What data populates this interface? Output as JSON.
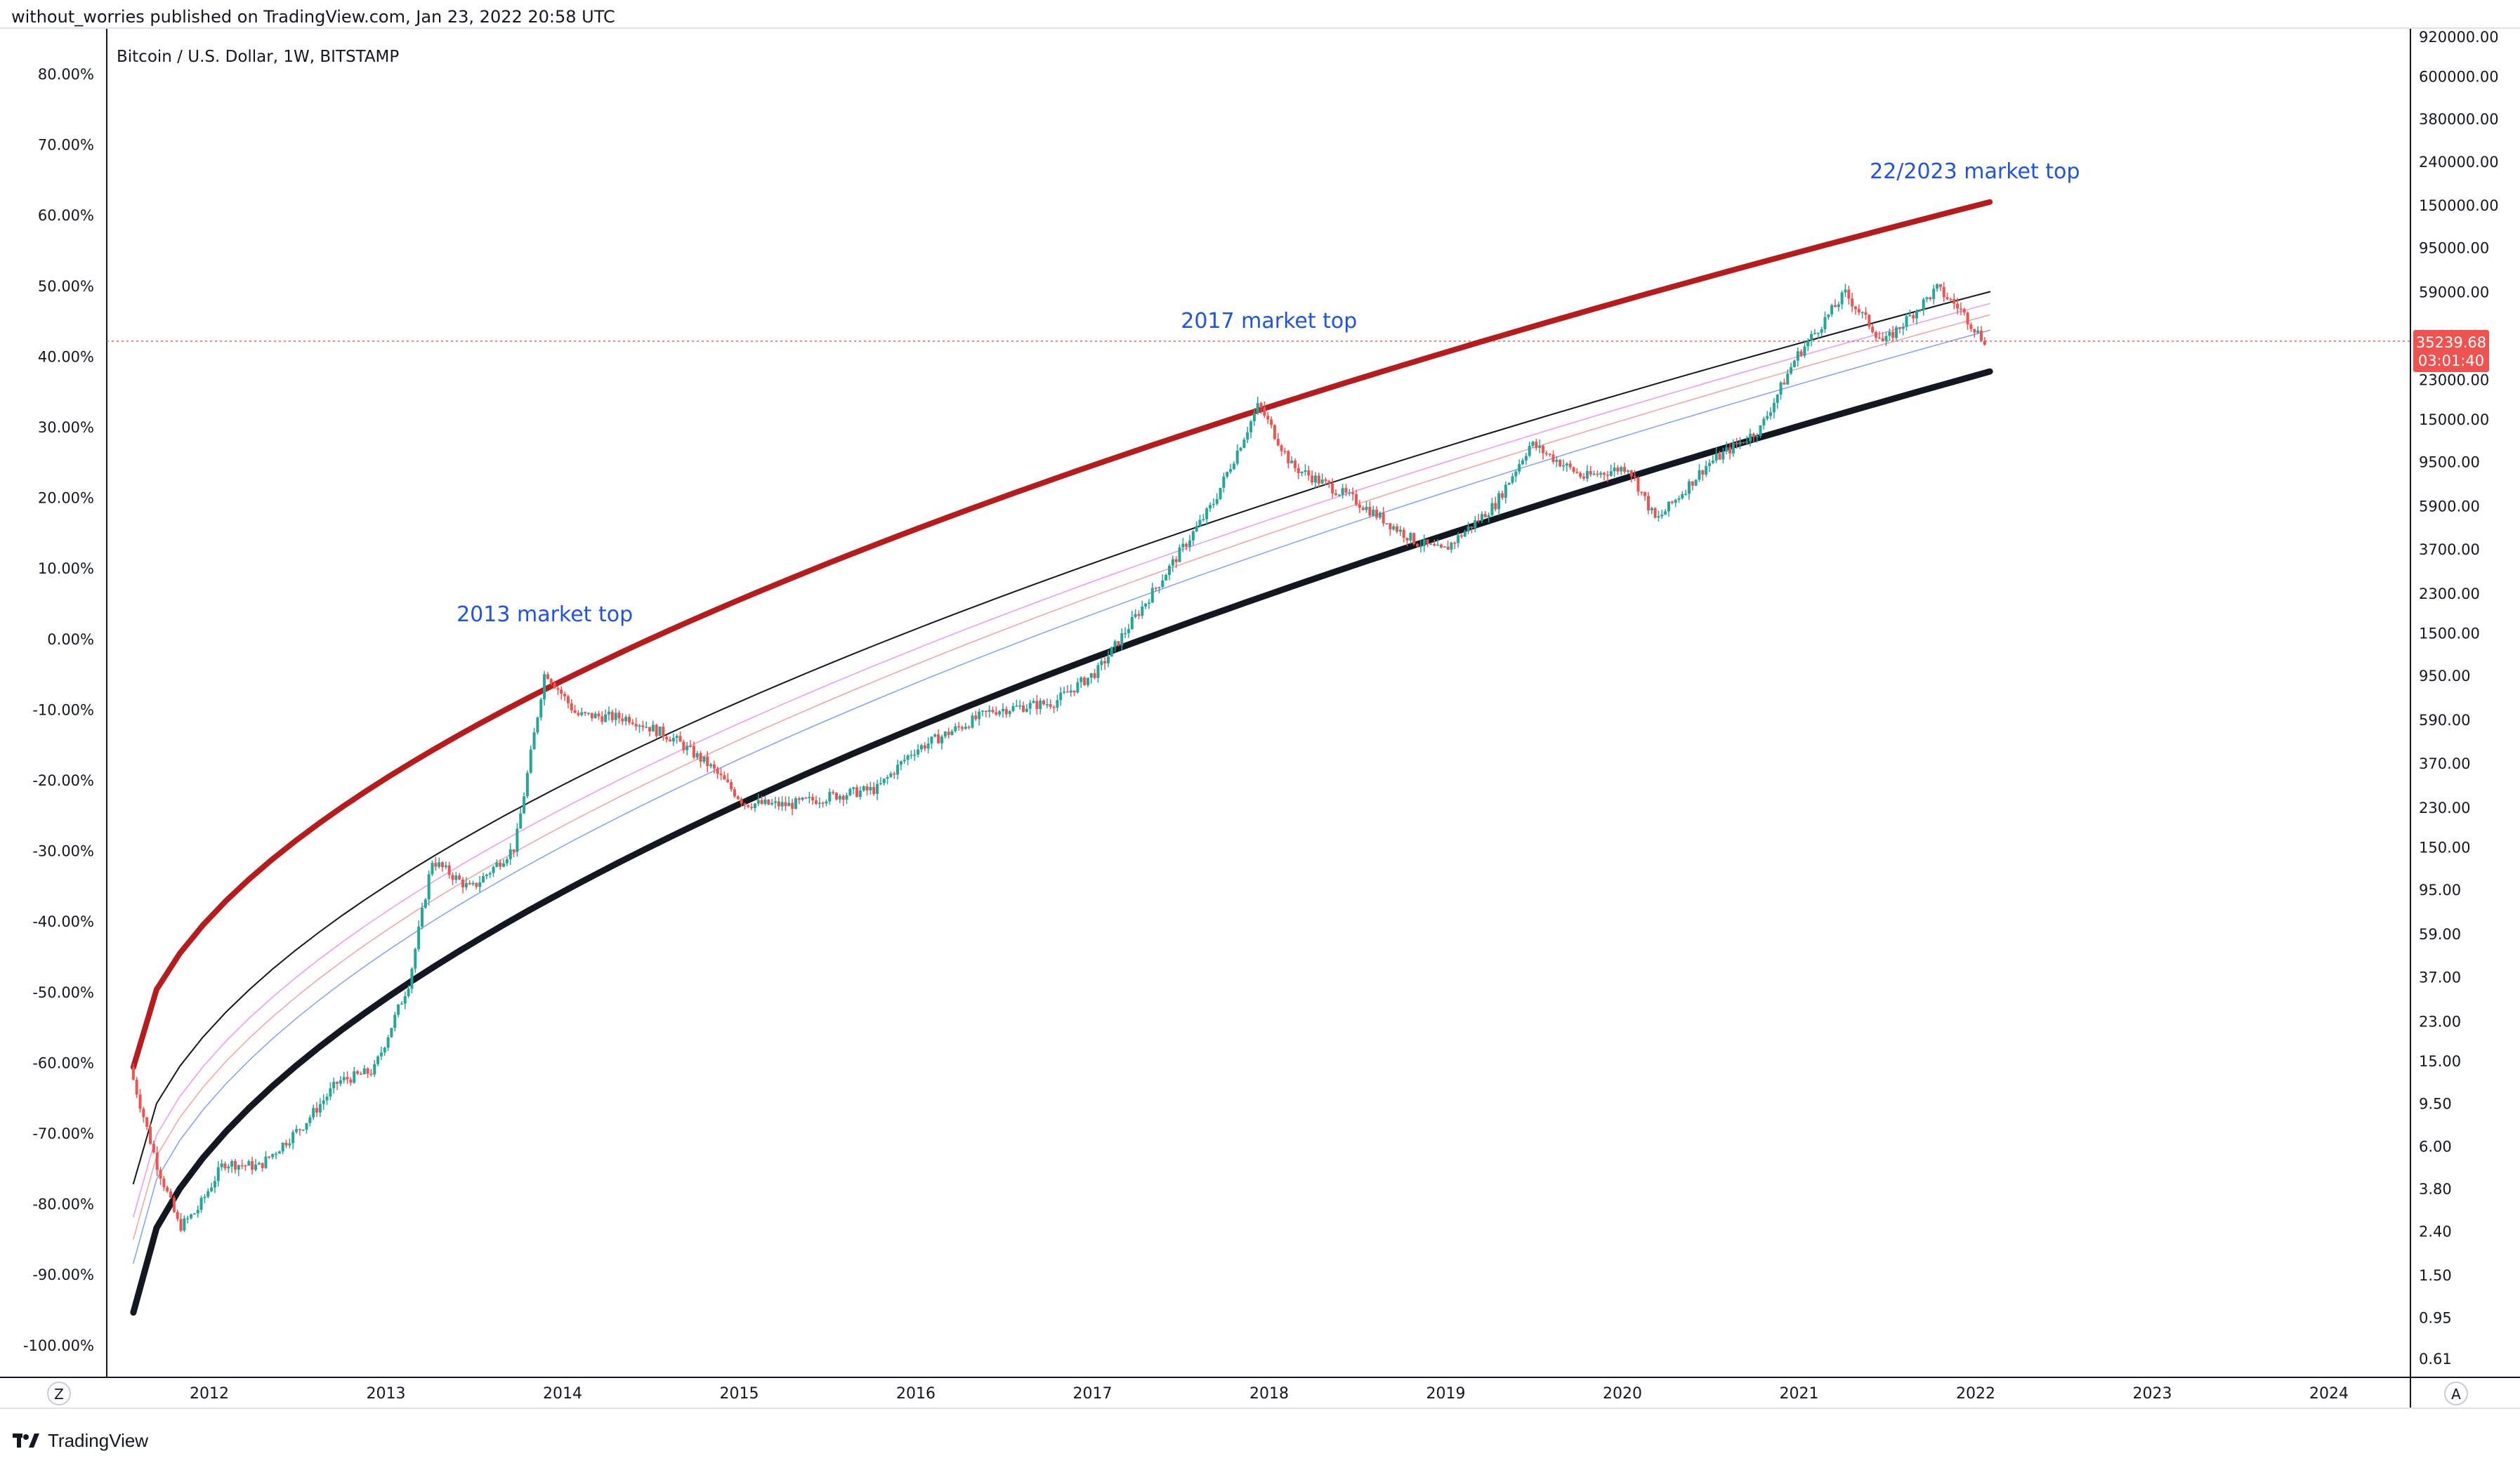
{
  "header": {
    "publish_line": "without_worries published on TradingView.com, Jan 23, 2022 20:58 UTC",
    "symbol_label": "Bitcoin / U.S. Dollar, 1W, BITSTAMP"
  },
  "brand": {
    "name": "TradingView",
    "icon": "tradingview-logo-icon"
  },
  "corner_buttons": {
    "left": "Z",
    "right": "A"
  },
  "price_badge": {
    "price": "35239.68",
    "countdown": "03:01:40",
    "color": "#ef5350"
  },
  "colors": {
    "upper_band": "#b71c1c",
    "lower_band": "#131722",
    "mid_band": "#131722",
    "pink_band": "#e040fb",
    "red_band": "#ef5350",
    "blue_band": "#2962ff",
    "candle_up": "#26a69a",
    "candle_down": "#ef5350",
    "annotation": "#1e53e5"
  },
  "chart_data": {
    "type": "candlestick-log",
    "title": "Bitcoin / U.S. Dollar, 1W, BITSTAMP",
    "x_axis": {
      "ticks": [
        "2012",
        "2013",
        "2014",
        "2015",
        "2016",
        "2017",
        "2018",
        "2019",
        "2020",
        "2021",
        "2022",
        "2023",
        "2024"
      ]
    },
    "left_axis": {
      "label": "percent",
      "ticks": [
        "80.00%",
        "70.00%",
        "60.00%",
        "50.00%",
        "40.00%",
        "30.00%",
        "20.00%",
        "10.00%",
        "0.00%",
        "-10.00%",
        "-20.00%",
        "-30.00%",
        "-40.00%",
        "-50.00%",
        "-60.00%",
        "-70.00%",
        "-80.00%",
        "-90.00%",
        "-100.00%"
      ]
    },
    "right_axis": {
      "scale": "log",
      "ticks": [
        "920000.00",
        "600000.00",
        "380000.00",
        "240000.00",
        "150000.00",
        "95000.00",
        "59000.00",
        "37000.00",
        "23000.00",
        "15000.00",
        "9500.00",
        "5900.00",
        "3700.00",
        "2300.00",
        "1500.00",
        "950.00",
        "590.00",
        "370.00",
        "230.00",
        "150.00",
        "95.00",
        "59.00",
        "37.00",
        "23.00",
        "15.00",
        "9.50",
        "6.00",
        "3.80",
        "2.40",
        "1.50",
        "0.95",
        "0.61"
      ]
    },
    "last_price": 35239.68,
    "annotations": [
      {
        "text": "2013 market top",
        "year": 2013.4,
        "price": 1700
      },
      {
        "text": "2017 market top",
        "year": 2017.5,
        "price": 40000
      },
      {
        "text": "22/2023 market top",
        "year": 2021.4,
        "price": 200000
      }
    ],
    "bands": [
      {
        "name": "upper-red",
        "start_price": 14,
        "end_price": 155000
      },
      {
        "name": "black-mid",
        "start_price": 4,
        "end_price": 59000
      },
      {
        "name": "pink",
        "start_price": 2.8,
        "end_price": 52000
      },
      {
        "name": "light-red",
        "start_price": 2.2,
        "end_price": 46000
      },
      {
        "name": "blue",
        "start_price": 1.7,
        "end_price": 39000
      },
      {
        "name": "black-bottom",
        "start_price": 1.0,
        "end_price": 25000
      }
    ],
    "price_path": [
      {
        "year": 2011.57,
        "price": 14
      },
      {
        "year": 2011.72,
        "price": 5
      },
      {
        "year": 2011.85,
        "price": 2.5
      },
      {
        "year": 2011.95,
        "price": 3
      },
      {
        "year": 2012.1,
        "price": 5
      },
      {
        "year": 2012.3,
        "price": 4.8
      },
      {
        "year": 2012.55,
        "price": 7.5
      },
      {
        "year": 2012.75,
        "price": 12
      },
      {
        "year": 2012.95,
        "price": 13.5
      },
      {
        "year": 2013.15,
        "price": 35
      },
      {
        "year": 2013.28,
        "price": 130
      },
      {
        "year": 2013.5,
        "price": 95
      },
      {
        "year": 2013.75,
        "price": 150
      },
      {
        "year": 2013.92,
        "price": 1000
      },
      {
        "year": 2014.1,
        "price": 620
      },
      {
        "year": 2014.4,
        "price": 600
      },
      {
        "year": 2014.65,
        "price": 480
      },
      {
        "year": 2014.85,
        "price": 360
      },
      {
        "year": 2015.05,
        "price": 240
      },
      {
        "year": 2015.3,
        "price": 235
      },
      {
        "year": 2015.55,
        "price": 260
      },
      {
        "year": 2015.8,
        "price": 280
      },
      {
        "year": 2016.0,
        "price": 420
      },
      {
        "year": 2016.45,
        "price": 650
      },
      {
        "year": 2016.8,
        "price": 710
      },
      {
        "year": 2017.05,
        "price": 1000
      },
      {
        "year": 2017.4,
        "price": 2600
      },
      {
        "year": 2017.7,
        "price": 6000
      },
      {
        "year": 2017.96,
        "price": 17500
      },
      {
        "year": 2018.15,
        "price": 9000
      },
      {
        "year": 2018.5,
        "price": 6300
      },
      {
        "year": 2018.85,
        "price": 4000
      },
      {
        "year": 2019.0,
        "price": 3600
      },
      {
        "year": 2019.3,
        "price": 6000
      },
      {
        "year": 2019.5,
        "price": 11500
      },
      {
        "year": 2019.8,
        "price": 8000
      },
      {
        "year": 2020.05,
        "price": 9000
      },
      {
        "year": 2020.21,
        "price": 5000
      },
      {
        "year": 2020.5,
        "price": 9200
      },
      {
        "year": 2020.8,
        "price": 13500
      },
      {
        "year": 2021.0,
        "price": 29000
      },
      {
        "year": 2021.28,
        "price": 58000
      },
      {
        "year": 2021.5,
        "price": 34000
      },
      {
        "year": 2021.8,
        "price": 61000
      },
      {
        "year": 2021.93,
        "price": 49000
      },
      {
        "year": 2022.06,
        "price": 35239.68
      }
    ]
  }
}
